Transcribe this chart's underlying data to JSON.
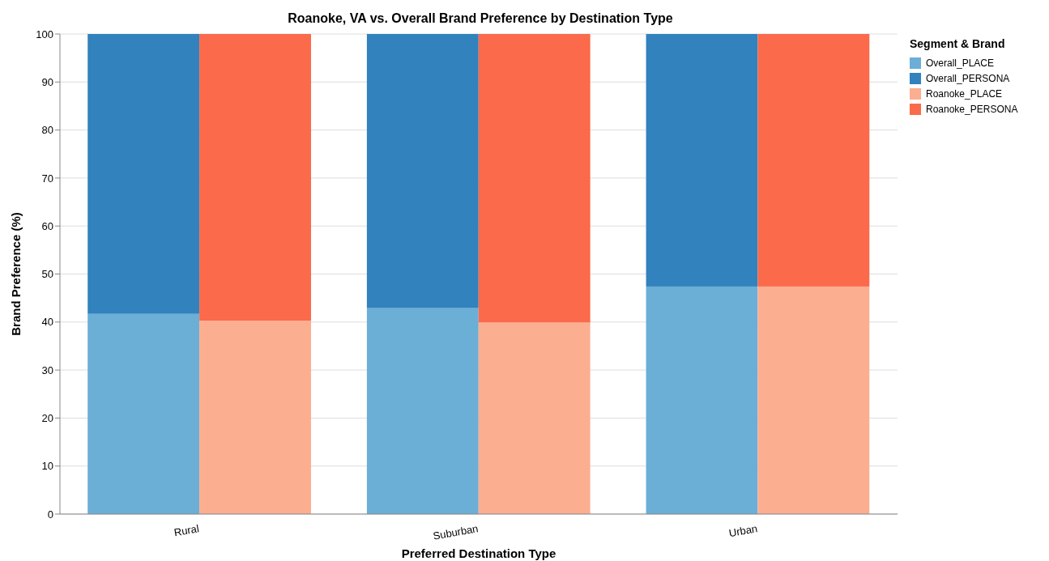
{
  "chart_data": {
    "type": "bar",
    "title": "Roanoke, VA vs. Overall Brand Preference by Destination Type",
    "xlabel": "Preferred Destination Type",
    "ylabel": "Brand Preference (%)",
    "legend_title": "Segment & Brand",
    "categories": [
      "Rural",
      null,
      "Suburban",
      null,
      "Urban",
      null
    ],
    "series": [
      {
        "name": "Overall_PLACE",
        "color": "#6baed6",
        "values": [
          41.7,
          null,
          42.9,
          null,
          47.4,
          null
        ]
      },
      {
        "name": "Overall_PERSONA",
        "color": "#3182bd",
        "values": [
          58.3,
          null,
          57.1,
          null,
          52.6,
          null
        ]
      },
      {
        "name": "Roanoke_PLACE",
        "color": "#fcae91",
        "values": [
          null,
          40.3,
          null,
          39.9,
          null,
          47.4
        ]
      },
      {
        "name": "Roanoke_PERSONA",
        "color": "#fb6a4a",
        "values": [
          null,
          59.7,
          null,
          60.1,
          null,
          52.6
        ]
      }
    ],
    "stacked": true,
    "ylim": [
      0,
      100
    ],
    "yticks": [
      0,
      10,
      20,
      30,
      40,
      50,
      60,
      70,
      80,
      90,
      100
    ],
    "grid": "y",
    "legend": "top right"
  }
}
